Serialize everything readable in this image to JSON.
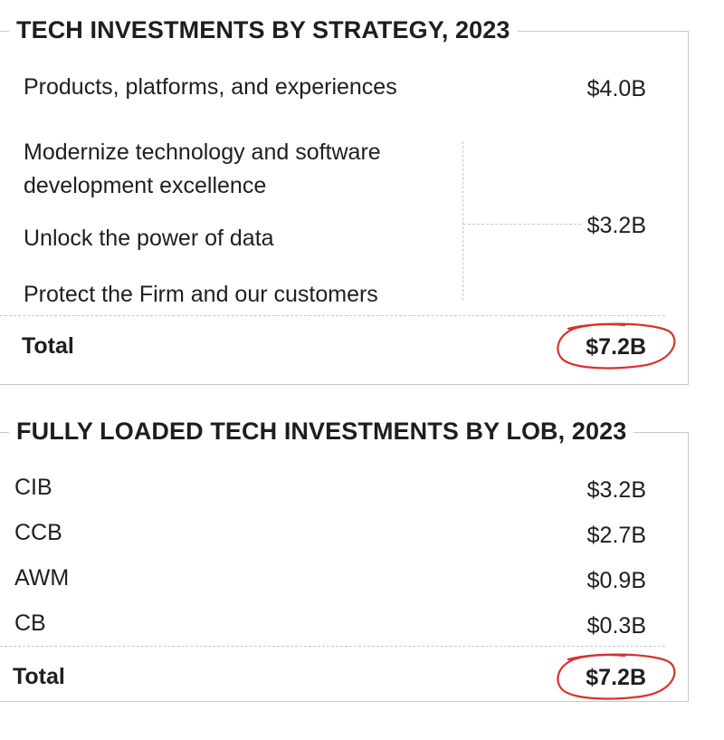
{
  "strategy": {
    "title": "TECH INVESTMENTS BY STRATEGY, 2023",
    "rows": [
      {
        "label": "Products, platforms, and experiences",
        "value": "$4.0B"
      },
      {
        "label_line1": "Modernize technology and software",
        "label_line2": "development excellence"
      },
      {
        "label": "Unlock the power of data"
      },
      {
        "label": "Protect the Firm and our customers"
      }
    ],
    "grouped_value": "$3.2B",
    "total_label": "Total",
    "total_value": "$7.2B"
  },
  "lob": {
    "title": "FULLY LOADED TECH INVESTMENTS BY LOB, 2023",
    "rows": [
      {
        "label": "CIB",
        "value": "$3.2B"
      },
      {
        "label": "CCB",
        "value": "$2.7B"
      },
      {
        "label": "AWM",
        "value": "$0.9B"
      },
      {
        "label": "CB",
        "value": "$0.3B"
      }
    ],
    "total_label": "Total",
    "total_value": "$7.2B"
  },
  "colors": {
    "highlight_circle": "#d7322c",
    "border": "#c9c9c9"
  }
}
